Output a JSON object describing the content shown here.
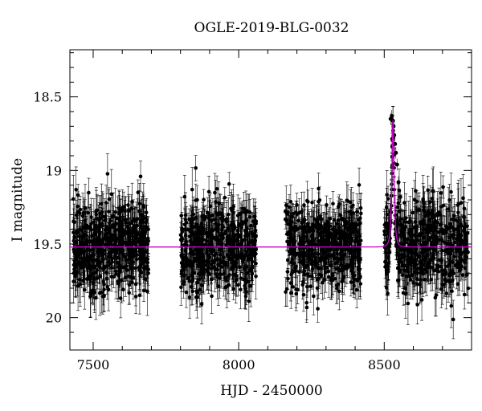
{
  "chart_data": {
    "type": "scatter",
    "title": "OGLE-2019-BLG-0032",
    "xlabel": "HJD - 2450000",
    "ylabel": "I magnitude",
    "xlim": [
      7420,
      8800
    ],
    "ylim": [
      20.22,
      18.18
    ],
    "y_inverted": true,
    "x_ticks": [
      7500,
      8000,
      8500
    ],
    "x_tick_labels": [
      "7500",
      "8000",
      "8500"
    ],
    "y_ticks": [
      18.5,
      19,
      19.5,
      20
    ],
    "y_tick_labels": [
      "18.5",
      "19",
      "19.5",
      "20"
    ],
    "grid": false,
    "legend": "none",
    "point_color": "#000000",
    "errorbar_color": "#000000",
    "model_color": "#cc00cc",
    "series": [
      {
        "kind": "points_with_errorbars",
        "seasons": [
          {
            "x_range": [
              7430,
              7690
            ],
            "base_mag": 19.53,
            "scatter_mag": 0.17,
            "typical_error_mag": 0.12
          },
          {
            "x_range": [
              7800,
              8060
            ],
            "base_mag": 19.53,
            "scatter_mag": 0.15,
            "typical_error_mag": 0.11
          },
          {
            "x_range": [
              8160,
              8420
            ],
            "base_mag": 19.52,
            "scatter_mag": 0.14,
            "typical_error_mag": 0.1
          },
          {
            "x_range": [
              8500,
              8790
            ],
            "base_mag": 19.53,
            "scatter_mag": 0.17,
            "typical_error_mag": 0.12
          }
        ],
        "peak_points": [
          {
            "x": 8522,
            "y": 18.65
          },
          {
            "x": 8526,
            "y": 18.63
          },
          {
            "x": 8529,
            "y": 18.66
          },
          {
            "x": 8532,
            "y": 18.7
          },
          {
            "x": 8534,
            "y": 18.76
          },
          {
            "x": 8537,
            "y": 18.82
          },
          {
            "x": 8540,
            "y": 18.88
          },
          {
            "x": 8544,
            "y": 18.96
          },
          {
            "x": 8549,
            "y": 19.08
          },
          {
            "x": 8555,
            "y": 19.18
          }
        ]
      },
      {
        "kind": "model_curve",
        "baseline_mag": 19.52,
        "peak_mag": 18.66,
        "t0": 8530,
        "tE": 8,
        "u0": 0.45
      }
    ]
  }
}
